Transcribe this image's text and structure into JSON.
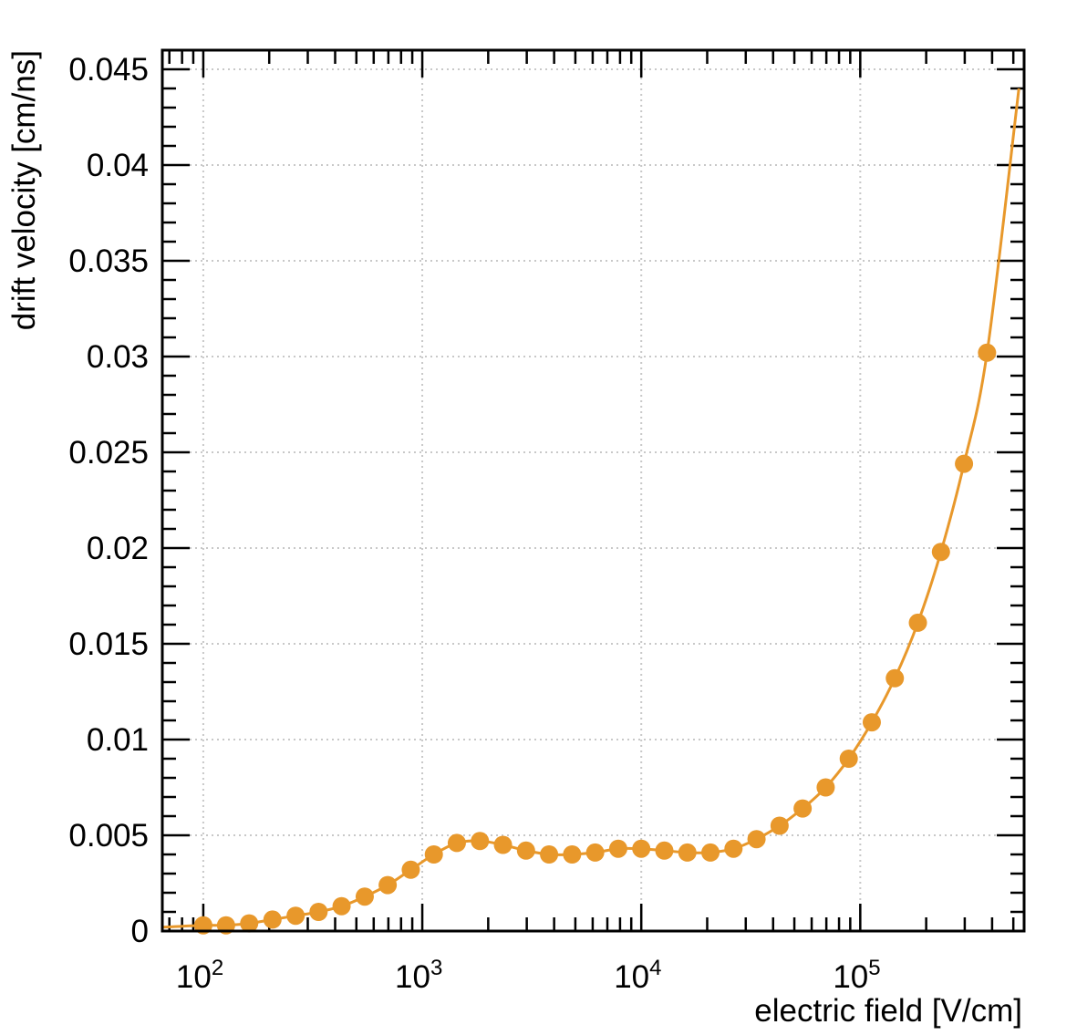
{
  "chart_data": {
    "type": "line",
    "xlabel": "electric field [V/cm]",
    "ylabel": "drift velocity [cm/ns]",
    "xscale": "log",
    "xlim": [
      65,
      560000
    ],
    "ylim": [
      0,
      0.046
    ],
    "grid": true,
    "x_ticks": [
      {
        "value": 100,
        "base": "10",
        "exp": "2"
      },
      {
        "value": 1000,
        "base": "10",
        "exp": "3"
      },
      {
        "value": 10000,
        "base": "10",
        "exp": "4"
      },
      {
        "value": 100000,
        "base": "10",
        "exp": "5"
      }
    ],
    "y_ticks": [
      {
        "value": 0,
        "label": "0"
      },
      {
        "value": 0.005,
        "label": "0.005"
      },
      {
        "value": 0.01,
        "label": "0.01"
      },
      {
        "value": 0.015,
        "label": "0.015"
      },
      {
        "value": 0.02,
        "label": "0.02"
      },
      {
        "value": 0.025,
        "label": "0.025"
      },
      {
        "value": 0.03,
        "label": "0.03"
      },
      {
        "value": 0.035,
        "label": "0.035"
      },
      {
        "value": 0.04,
        "label": "0.04"
      },
      {
        "value": 0.045,
        "label": "0.045"
      }
    ],
    "series": [
      {
        "color": "#e8982b",
        "points": [
          [
            100,
            0.0003
          ],
          [
            127,
            0.0003
          ],
          [
            162,
            0.0004
          ],
          [
            207,
            0.0006
          ],
          [
            264,
            0.0008
          ],
          [
            336,
            0.001
          ],
          [
            428,
            0.0013
          ],
          [
            546,
            0.0018
          ],
          [
            695,
            0.0024
          ],
          [
            886,
            0.0032
          ],
          [
            1129,
            0.004
          ],
          [
            1438,
            0.0046
          ],
          [
            1833,
            0.0047
          ],
          [
            2336,
            0.0045
          ],
          [
            2976,
            0.0042
          ],
          [
            3793,
            0.004
          ],
          [
            4833,
            0.004
          ],
          [
            6158,
            0.0041
          ],
          [
            7848,
            0.0043
          ],
          [
            10000,
            0.0043
          ],
          [
            12743,
            0.0042
          ],
          [
            16238,
            0.0041
          ],
          [
            20691,
            0.0041
          ],
          [
            26367,
            0.0043
          ],
          [
            33598,
            0.0048
          ],
          [
            42813,
            0.0055
          ],
          [
            54556,
            0.0064
          ],
          [
            69519,
            0.0075
          ],
          [
            88587,
            0.009
          ],
          [
            112884,
            0.0109
          ],
          [
            143845,
            0.0132
          ],
          [
            183298,
            0.0161
          ],
          [
            233572,
            0.0198
          ],
          [
            297635,
            0.0244
          ],
          [
            379269,
            0.0302
          ]
        ],
        "curve_extension": [
          [
            65,
            0.0002
          ],
          [
            530000,
            0.044
          ]
        ]
      }
    ]
  }
}
